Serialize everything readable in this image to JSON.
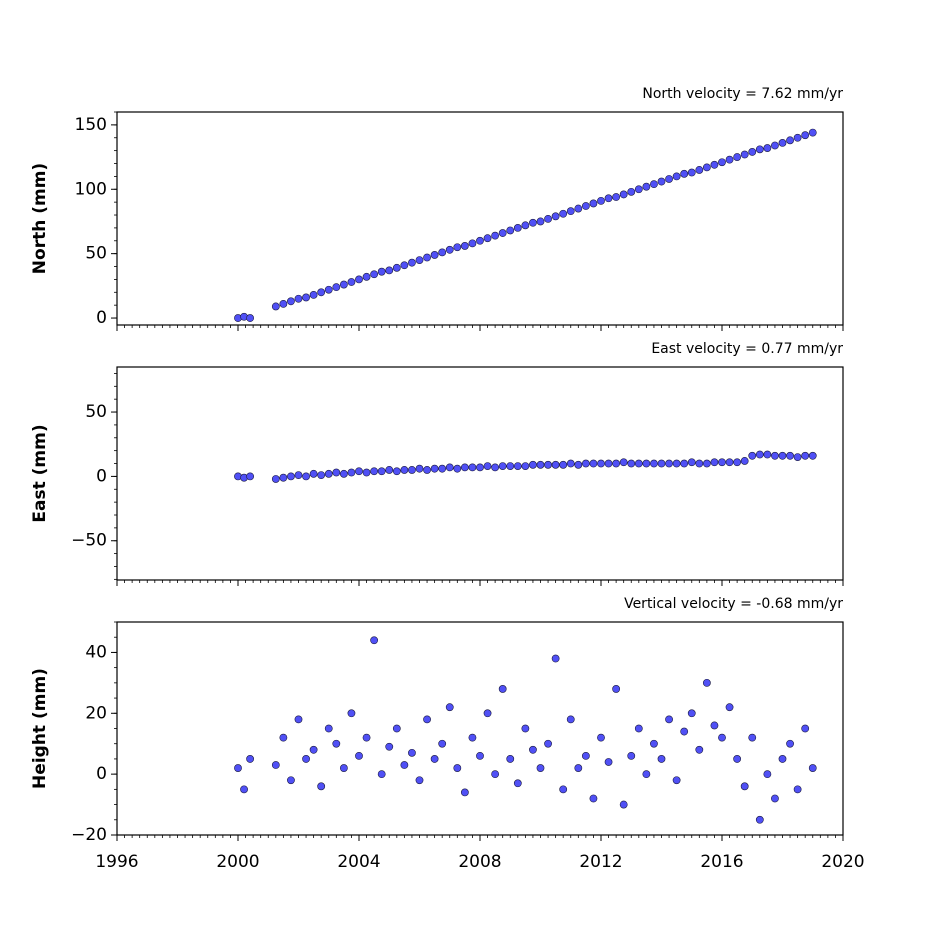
{
  "chart_data": [
    {
      "type": "scatter",
      "title": "North velocity = 7.62 mm/yr",
      "ylabel": "North (mm)",
      "color": "#5050f5",
      "edgecolor": "#1a1a40",
      "show_xtick_labels": false,
      "xlim": [
        1996,
        2020
      ],
      "xticks": [
        1996,
        2000,
        2004,
        2008,
        2012,
        2016,
        2020
      ],
      "ylim": [
        -5.4,
        160
      ],
      "yticks": [
        0,
        50,
        100,
        150
      ],
      "minor_per_major": {
        "x": 16,
        "y": 5
      },
      "x": [
        2000.0,
        2000.2,
        2000.4,
        2001.25,
        2001.5,
        2001.75,
        2002,
        2002.25,
        2002.5,
        2002.75,
        2003,
        2003.25,
        2003.5,
        2003.75,
        2004,
        2004.25,
        2004.5,
        2004.75,
        2005,
        2005.25,
        2005.5,
        2005.75,
        2006,
        2006.25,
        2006.5,
        2006.75,
        2007,
        2007.25,
        2007.5,
        2007.75,
        2008,
        2008.25,
        2008.5,
        2008.75,
        2009,
        2009.25,
        2009.5,
        2009.75,
        2010,
        2010.25,
        2010.5,
        2010.75,
        2011,
        2011.25,
        2011.5,
        2011.75,
        2012,
        2012.25,
        2012.5,
        2012.75,
        2013,
        2013.25,
        2013.5,
        2013.75,
        2014,
        2014.25,
        2014.5,
        2014.75,
        2015,
        2015.25,
        2015.5,
        2015.75,
        2016,
        2016.25,
        2016.5,
        2016.75,
        2017,
        2017.25,
        2017.5,
        2017.75,
        2018,
        2018.25,
        2018.5,
        2018.75,
        2019
      ],
      "values": [
        0,
        1,
        0,
        9,
        11,
        13,
        15,
        16,
        18,
        20,
        22,
        24,
        26,
        28,
        30,
        32,
        34,
        36,
        37,
        39,
        41,
        43,
        45,
        47,
        49,
        51,
        53,
        55,
        56,
        58,
        60,
        62,
        64,
        66,
        68,
        70,
        72,
        74,
        75,
        77,
        79,
        81,
        83,
        85,
        87,
        89,
        91,
        93,
        94,
        96,
        98,
        100,
        102,
        104,
        106,
        108,
        110,
        112,
        113,
        115,
        117,
        119,
        121,
        123,
        125,
        127,
        129,
        131,
        132,
        134,
        136,
        138,
        140,
        142,
        144
      ]
    },
    {
      "type": "scatter",
      "title": "East velocity = 0.77 mm/yr",
      "ylabel": "East (mm)",
      "color": "#5050f5",
      "edgecolor": "#1a1a40",
      "show_xtick_labels": false,
      "xlim": [
        1996,
        2020
      ],
      "xticks": [
        1996,
        2000,
        2004,
        2008,
        2012,
        2016,
        2020
      ],
      "ylim": [
        -80.5,
        85
      ],
      "yticks": [
        {
          "value": -50,
          "label": "−50"
        },
        0,
        50
      ],
      "minor_per_major": {
        "x": 16,
        "y": 5
      },
      "x": [
        2000.0,
        2000.2,
        2000.4,
        2001.25,
        2001.5,
        2001.75,
        2002,
        2002.25,
        2002.5,
        2002.75,
        2003,
        2003.25,
        2003.5,
        2003.75,
        2004,
        2004.25,
        2004.5,
        2004.75,
        2005,
        2005.25,
        2005.5,
        2005.75,
        2006,
        2006.25,
        2006.5,
        2006.75,
        2007,
        2007.25,
        2007.5,
        2007.75,
        2008,
        2008.25,
        2008.5,
        2008.75,
        2009,
        2009.25,
        2009.5,
        2009.75,
        2010,
        2010.25,
        2010.5,
        2010.75,
        2011,
        2011.25,
        2011.5,
        2011.75,
        2012,
        2012.25,
        2012.5,
        2012.75,
        2013,
        2013.25,
        2013.5,
        2013.75,
        2014,
        2014.25,
        2014.5,
        2014.75,
        2015,
        2015.25,
        2015.5,
        2015.75,
        2016,
        2016.25,
        2016.5,
        2016.75,
        2017,
        2017.25,
        2017.5,
        2017.75,
        2018,
        2018.25,
        2018.5,
        2018.75,
        2019
      ],
      "values": [
        0,
        -1,
        0,
        -2,
        -1,
        0,
        1,
        0,
        2,
        1,
        2,
        3,
        2,
        3,
        4,
        3,
        4,
        4,
        5,
        4,
        5,
        5,
        6,
        5,
        6,
        6,
        7,
        6,
        7,
        7,
        7,
        8,
        7,
        8,
        8,
        8,
        8,
        9,
        9,
        9,
        9,
        9,
        10,
        9,
        10,
        10,
        10,
        10,
        10,
        11,
        10,
        10,
        10,
        10,
        10,
        10,
        10,
        10,
        11,
        10,
        10,
        11,
        11,
        11,
        11,
        12,
        16,
        17,
        17,
        16,
        16,
        16,
        15,
        16,
        16
      ]
    },
    {
      "type": "scatter",
      "title": "Vertical velocity = -0.68 mm/yr",
      "ylabel": "Height (mm)",
      "color": "#5050f5",
      "edgecolor": "#1a1a40",
      "show_xtick_labels": true,
      "xlim": [
        1996,
        2020
      ],
      "xticks": [
        1996,
        2000,
        2004,
        2008,
        2012,
        2016,
        2020
      ],
      "ylim": [
        -20,
        50
      ],
      "yticks": [
        {
          "value": -20,
          "label": "−20"
        },
        0,
        20,
        40
      ],
      "minor_per_major": {
        "x": 16,
        "y": 4
      },
      "x": [
        2000.0,
        2000.2,
        2000.4,
        2001.25,
        2001.5,
        2001.75,
        2002,
        2002.25,
        2002.5,
        2002.75,
        2003,
        2003.25,
        2003.5,
        2003.75,
        2004,
        2004.25,
        2004.5,
        2004.75,
        2005,
        2005.25,
        2005.5,
        2005.75,
        2006,
        2006.25,
        2006.5,
        2006.75,
        2007,
        2007.25,
        2007.5,
        2007.75,
        2008,
        2008.25,
        2008.5,
        2008.75,
        2009,
        2009.25,
        2009.5,
        2009.75,
        2010,
        2010.25,
        2010.5,
        2010.75,
        2011,
        2011.25,
        2011.5,
        2011.75,
        2012,
        2012.25,
        2012.5,
        2012.75,
        2013,
        2013.25,
        2013.5,
        2013.75,
        2014,
        2014.25,
        2014.5,
        2014.75,
        2015,
        2015.25,
        2015.5,
        2015.75,
        2016,
        2016.25,
        2016.5,
        2016.75,
        2017,
        2017.25,
        2017.5,
        2017.75,
        2018,
        2018.25,
        2018.5,
        2018.75,
        2019
      ],
      "values": [
        2,
        -5,
        5,
        3,
        12,
        -2,
        18,
        5,
        8,
        -4,
        15,
        10,
        2,
        20,
        6,
        12,
        44,
        0,
        9,
        15,
        3,
        7,
        -2,
        18,
        5,
        10,
        22,
        2,
        -6,
        12,
        6,
        20,
        0,
        28,
        5,
        -3,
        15,
        8,
        2,
        10,
        38,
        -5,
        18,
        2,
        6,
        -8,
        12,
        4,
        28,
        -10,
        6,
        15,
        0,
        10,
        5,
        18,
        -2,
        14,
        20,
        8,
        30,
        16,
        12,
        22,
        5,
        -4,
        12,
        -15,
        0,
        -8,
        5,
        10,
        -5,
        15,
        2
      ]
    }
  ]
}
